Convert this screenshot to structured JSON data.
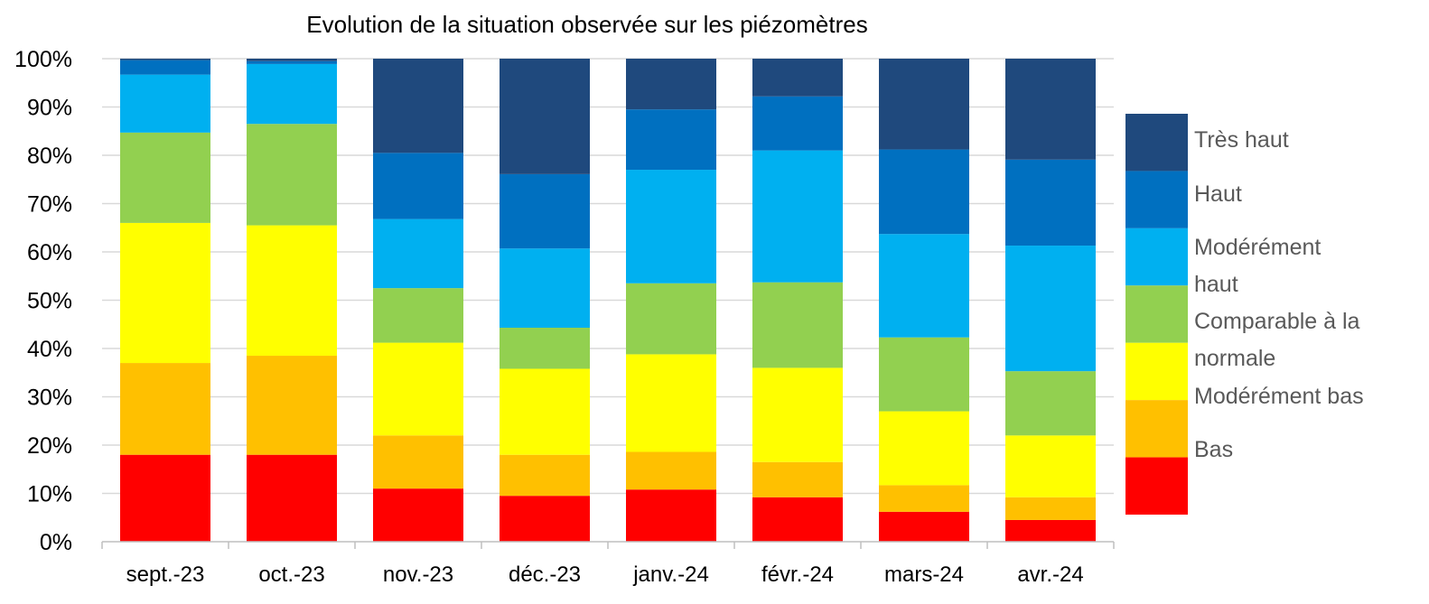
{
  "chart_data": {
    "type": "bar",
    "stacked": true,
    "title": "Evolution de la situation observée sur les  piézomètres",
    "xlabel": "",
    "ylabel": "",
    "ylim": [
      0,
      100
    ],
    "y_ticks": [
      "0%",
      "10%",
      "20%",
      "30%",
      "40%",
      "50%",
      "60%",
      "70%",
      "80%",
      "90%",
      "100%"
    ],
    "grid": true,
    "legend_position": "right",
    "categories": [
      "sept.-23",
      "oct.-23",
      "nov.-23",
      "déc.-23",
      "janv.-24",
      "févr.-24",
      "mars-24",
      "avr.-24"
    ],
    "series": [
      {
        "name": "",
        "color": "#ff0000",
        "values": [
          18,
          18,
          11,
          9.5,
          10.8,
          9.2,
          6.2,
          4.5
        ]
      },
      {
        "name": "Bas",
        "color": "#ffc000",
        "values": [
          19,
          20.5,
          11,
          8.5,
          7.8,
          7.3,
          5.5,
          4.7
        ]
      },
      {
        "name": "Modérément bas",
        "color": "#ffff00",
        "values": [
          29,
          27,
          19.2,
          17.8,
          20.2,
          19.5,
          15.3,
          12.8
        ]
      },
      {
        "name": "Comparable à la normale",
        "color": "#92d050",
        "values": [
          18.7,
          21,
          11.3,
          8.5,
          14.7,
          17.7,
          15.3,
          13.3
        ]
      },
      {
        "name": "Modérément haut",
        "color": "#00b0f0",
        "values": [
          12,
          12.4,
          14.3,
          16.4,
          23.5,
          27.3,
          21.4,
          26
        ]
      },
      {
        "name": "Haut",
        "color": "#0070c0",
        "values": [
          3,
          0.6,
          13.7,
          15.4,
          12.5,
          11.2,
          17.5,
          17.8
        ]
      },
      {
        "name": "Très haut",
        "color": "#1f497d",
        "values": [
          0.3,
          0.5,
          19.5,
          23.9,
          10.5,
          7.8,
          18.8,
          20.9
        ]
      }
    ]
  }
}
